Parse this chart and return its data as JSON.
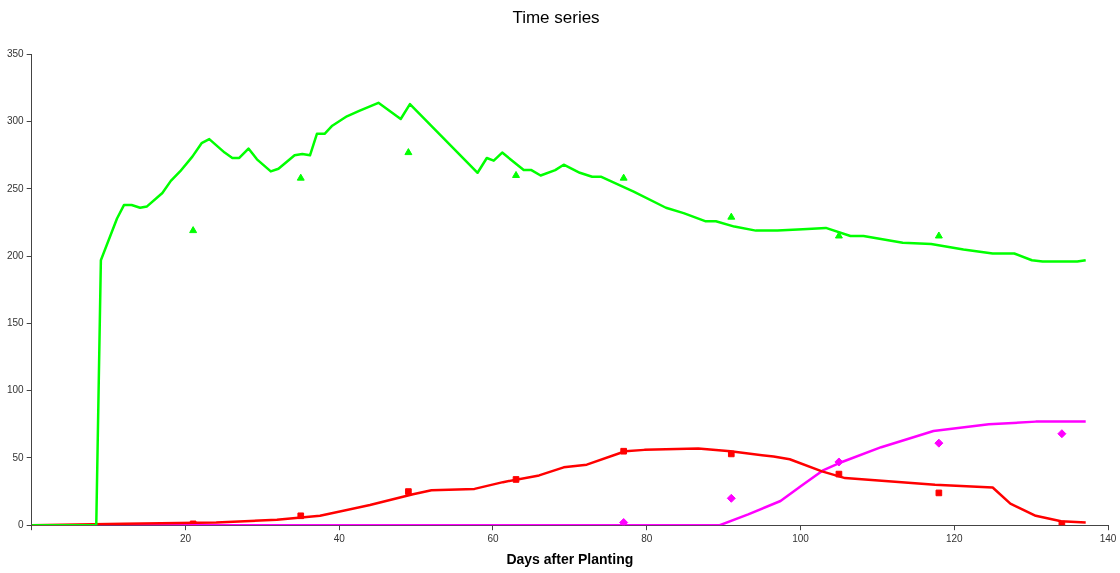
{
  "chart_data": {
    "type": "line",
    "title": "Time series",
    "xlabel": "Days after Planting",
    "xlim": [
      0,
      140
    ],
    "ylim": [
      0,
      350
    ],
    "xticks": [
      {
        "value": 0,
        "label": null
      },
      20,
      40,
      60,
      80,
      100,
      120,
      140
    ],
    "yticks": [
      0,
      50,
      100,
      150,
      200,
      250,
      300,
      350
    ],
    "grid": false,
    "legend": false,
    "line_style": "solid",
    "series": [
      {
        "type": "line",
        "marker": "none",
        "color": "#00ff00",
        "x": [
          0,
          8.4,
          9,
          11.1,
          12,
          13,
          14.1,
          15,
          17,
          18.1,
          19.3,
          20.9,
          22.1,
          23.1,
          25.1,
          26.1,
          27,
          28.2,
          29.3,
          31.1,
          32.1,
          34.2,
          35.2,
          36.2,
          37.1,
          38.1,
          39.1,
          41,
          42.6,
          45.1,
          48,
          49.2,
          58,
          59.2,
          60.1,
          61.2,
          64,
          65,
          66.2,
          68.1,
          69.2,
          71.3,
          72.9,
          74.1,
          78.3,
          82.5,
          84.8,
          87.6,
          89,
          91.4,
          94.2,
          97,
          100.3,
          103.3,
          106.5,
          108.2,
          113.3,
          117,
          121.2,
          125,
          127.8,
          130.1,
          131.5,
          136,
          137.1
        ],
        "values": [
          0,
          0,
          197,
          228,
          238,
          238,
          236,
          237,
          247,
          256,
          263,
          274,
          284,
          287,
          277,
          273,
          273,
          280,
          272,
          263,
          265,
          275,
          276,
          275,
          291,
          291,
          297,
          304,
          308,
          314,
          302,
          313,
          262,
          273,
          271,
          277,
          264,
          264,
          260,
          264,
          268,
          262,
          259,
          259,
          248,
          236,
          232,
          226,
          226,
          222,
          219,
          219,
          220,
          221,
          215,
          215,
          210,
          209,
          205,
          202,
          202,
          197,
          196,
          196,
          197
        ]
      },
      {
        "type": "line",
        "marker": "none",
        "color": "#ff0000",
        "x": [
          0,
          12,
          24,
          31.9,
          37.5,
          44,
          49.6,
          52,
          57.6,
          61.3,
          66,
          69.2,
          72.2,
          77.2,
          79.7,
          86.7,
          90.9,
          96.5,
          98.6,
          102.8,
          105.8,
          117.5,
          125,
          127.3,
          130.6,
          133.9,
          137.1
        ],
        "values": [
          0,
          1,
          2,
          4,
          7,
          15,
          23,
          26,
          27,
          32,
          37,
          43,
          45,
          55,
          56,
          57,
          55,
          51,
          49,
          40,
          35,
          30,
          28,
          16,
          7,
          3,
          2
        ]
      },
      {
        "type": "line",
        "marker": "none",
        "color": "#ff00ff",
        "x": [
          0,
          89.5,
          93.2,
          97.4,
          100.3,
          103,
          105.4,
          110.5,
          117.3,
          124.5,
          130.6,
          137.1
        ],
        "values": [
          0,
          0,
          8,
          18,
          30,
          41,
          47,
          58,
          70,
          75,
          77,
          77
        ]
      },
      {
        "type": "scatter",
        "marker": "triangle",
        "color": "#00ff00",
        "x": [
          21,
          35,
          49,
          63,
          77,
          91,
          105,
          118
        ],
        "values": [
          219,
          258,
          277,
          260,
          258,
          229,
          215,
          215
        ]
      },
      {
        "type": "scatter",
        "marker": "square",
        "color": "#ff0000",
        "x": [
          21,
          35,
          49,
          63,
          77,
          91,
          105,
          118,
          134
        ],
        "values": [
          1,
          7,
          25,
          34,
          55,
          53,
          38,
          24,
          1
        ]
      },
      {
        "type": "scatter",
        "marker": "diamond",
        "color": "#ff00ff",
        "x": [
          77,
          91,
          105,
          118,
          134
        ],
        "values": [
          2,
          20,
          47,
          61,
          68
        ]
      }
    ]
  }
}
